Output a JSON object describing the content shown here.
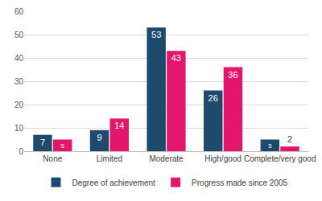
{
  "chart_data": {
    "type": "bar",
    "categories": [
      "None",
      "Limited",
      "Moderate",
      "High/good",
      "Complete/very good"
    ],
    "series": [
      {
        "name": "Degree of achievement",
        "color": "#1d4a6d",
        "values": [
          7,
          9,
          53,
          26,
          5
        ]
      },
      {
        "name": "Progress made since 2005",
        "color": "#e3166c",
        "values": [
          5,
          14,
          43,
          36,
          2
        ]
      }
    ],
    "ylim": [
      0,
      60
    ],
    "yticks": [
      0,
      10,
      20,
      30,
      40,
      50,
      60
    ],
    "grid": true,
    "legend": "bottom",
    "data_labels": true
  }
}
